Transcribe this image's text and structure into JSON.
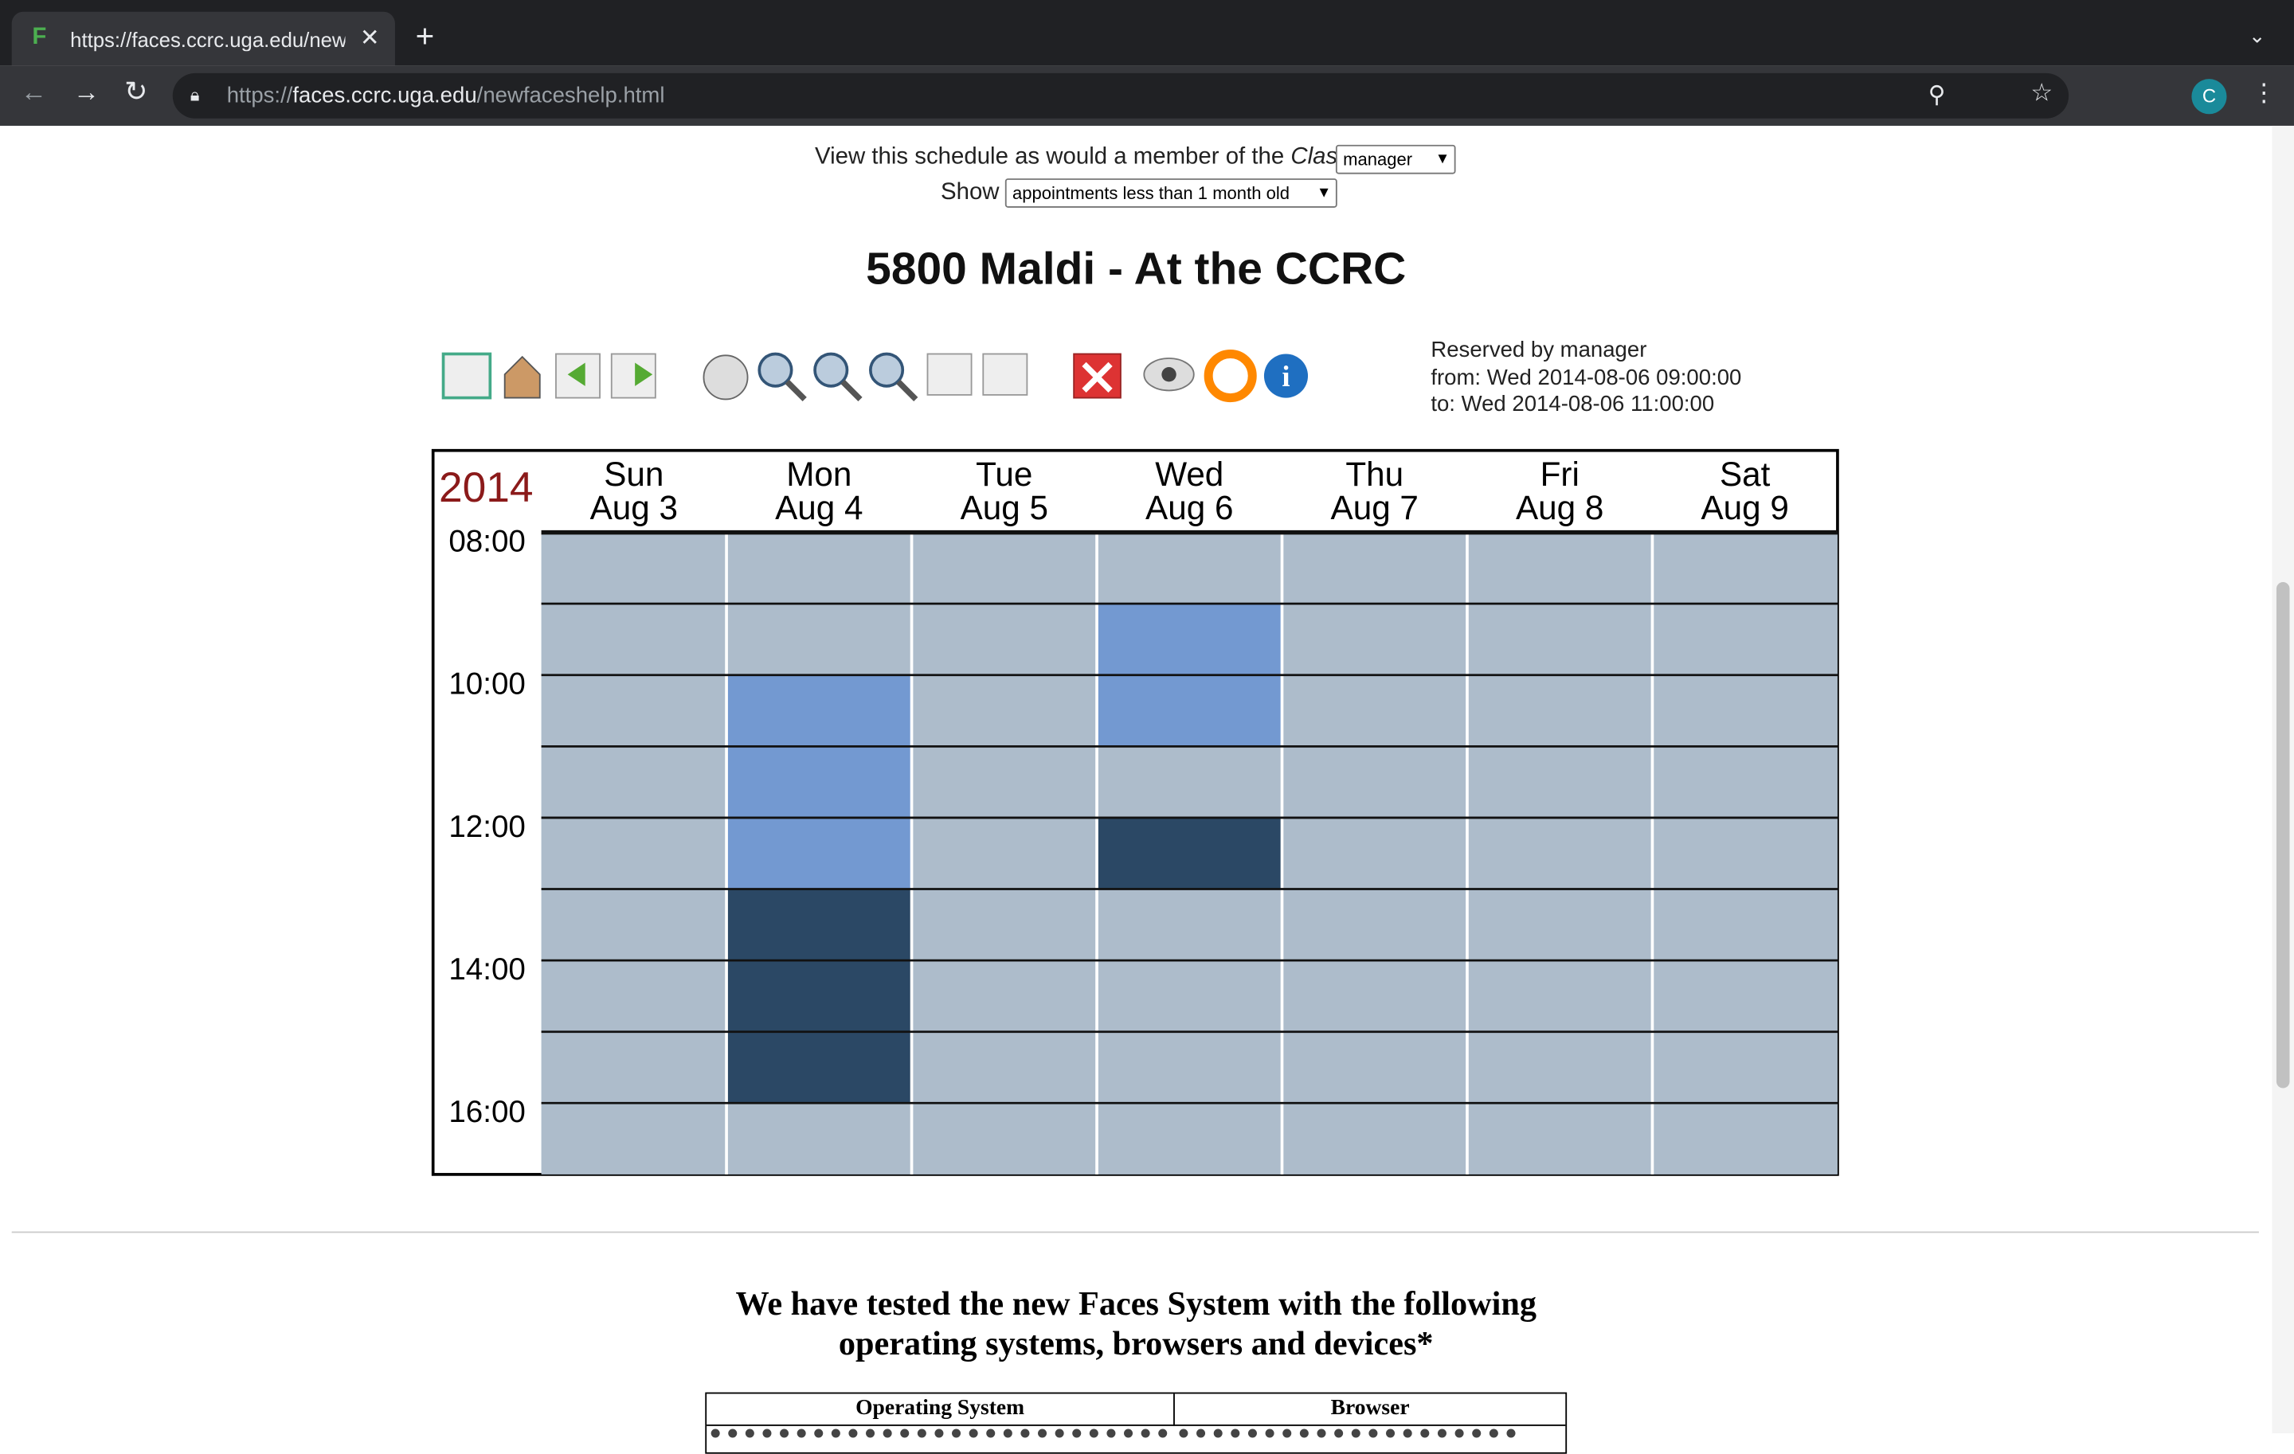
{
  "browser": {
    "tab_title": "https://faces.ccrc.uga.edu/newfaceshelp.html",
    "url_prefix": "https://",
    "url_host": "faces.ccrc.uga.edu",
    "url_path": "/newfaceshelp.html",
    "avatar": "C"
  },
  "controls": {
    "view_label": "View this schedule as would a member of the",
    "view_label_em": "Class",
    "class_value": "manager",
    "show_label": "Show",
    "show_value": "appointments less than 1 month old"
  },
  "schedule": {
    "title": "5800 Maldi - At the CCRC",
    "reservation": [
      "Reserved by manager",
      "from: Wed 2014-08-06 09:00:00",
      "to: Wed 2014-08-06 11:00:00"
    ],
    "year": "2014",
    "days": [
      {
        "name": "Sun",
        "date": "Aug 3"
      },
      {
        "name": "Mon",
        "date": "Aug 4"
      },
      {
        "name": "Tue",
        "date": "Aug 5"
      },
      {
        "name": "Wed",
        "date": "Aug 6"
      },
      {
        "name": "Thu",
        "date": "Aug 7"
      },
      {
        "name": "Fri",
        "date": "Aug 8"
      },
      {
        "name": "Sat",
        "date": "Aug 9"
      }
    ],
    "hours": [
      8,
      17
    ],
    "time_labels": [
      {
        "value": 8,
        "label": "08:00"
      },
      {
        "value": 10,
        "label": "10:00"
      },
      {
        "value": 12,
        "label": "12:00"
      },
      {
        "value": 14,
        "label": "14:00"
      },
      {
        "value": 16,
        "label": "16:00"
      }
    ],
    "free_color": "#adbccb",
    "appointments": [
      {
        "day": "Mon",
        "start": 10,
        "end": 13,
        "color": "#7399d1"
      },
      {
        "day": "Mon",
        "start": 13,
        "end": 16,
        "color": "#2b4865"
      },
      {
        "day": "Wed",
        "start": 9,
        "end": 11,
        "color": "#7399d1"
      },
      {
        "day": "Wed",
        "start": 12,
        "end": 13,
        "color": "#2b4865"
      }
    ]
  },
  "footer": {
    "heading_lines": [
      "We have tested the new Faces System with the following",
      "operating systems, browsers and devices*"
    ],
    "table_headers": [
      "Operating System",
      "Browser"
    ]
  }
}
